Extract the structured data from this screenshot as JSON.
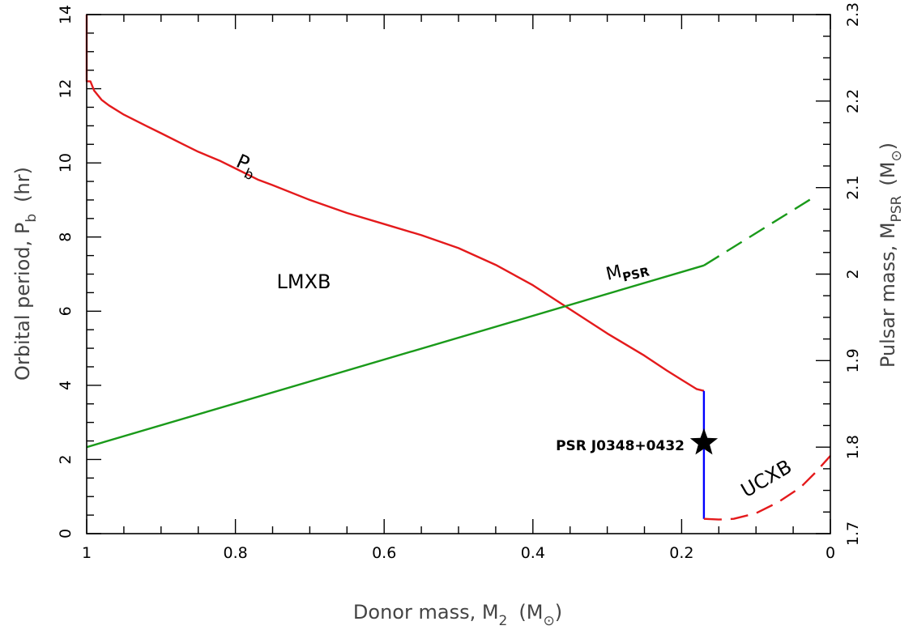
{
  "chart_data": {
    "type": "line",
    "xlabel": "Donor mass, M",
    "xlabel_sub": "2",
    "xlabel_unit": "(M",
    "xlabel_unit_close": ")",
    "ylabel_left": "Orbital period, P",
    "ylabel_left_sub": "b",
    "ylabel_left_unit": "(hr)",
    "ylabel_right": "Pulsar mass, M",
    "ylabel_right_sub": "PSR",
    "ylabel_right_unit": "(M",
    "ylabel_right_unit_close": ")",
    "xlim": [
      1,
      0
    ],
    "ylim_left": [
      0,
      14
    ],
    "ylim_right": [
      1.7,
      2.3
    ],
    "x_ticks": [
      "1",
      "0.8",
      "0.6",
      "0.4",
      "0.2",
      "0"
    ],
    "x_tick_values": [
      1,
      0.8,
      0.6,
      0.4,
      0.2,
      0
    ],
    "y_left_ticks": [
      "0",
      "2",
      "4",
      "6",
      "8",
      "10",
      "12",
      "14"
    ],
    "y_left_tick_values": [
      0,
      2,
      4,
      6,
      8,
      10,
      12,
      14
    ],
    "y_right_ticks": [
      "1.7",
      "1.8",
      "1.9",
      "2",
      "2.1",
      "2.2",
      "2.3"
    ],
    "y_right_tick_values": [
      1.7,
      1.8,
      1.9,
      2.0,
      2.1,
      2.2,
      2.3
    ],
    "grid": false,
    "series": [
      {
        "name": "P",
        "name_sub": "b",
        "axis": "left",
        "color": "#e41a1c",
        "style": "solid",
        "points": [
          [
            1.0,
            14.0
          ],
          [
            1.0,
            12.2
          ],
          [
            0.995,
            12.2
          ],
          [
            0.99,
            11.95
          ],
          [
            0.98,
            11.7
          ],
          [
            0.97,
            11.55
          ],
          [
            0.95,
            11.3
          ],
          [
            0.92,
            11.0
          ],
          [
            0.9,
            10.8
          ],
          [
            0.87,
            10.5
          ],
          [
            0.85,
            10.3
          ],
          [
            0.82,
            10.05
          ],
          [
            0.8,
            9.85
          ],
          [
            0.77,
            9.55
          ],
          [
            0.75,
            9.4
          ],
          [
            0.7,
            9.0
          ],
          [
            0.65,
            8.65
          ],
          [
            0.6,
            8.35
          ],
          [
            0.55,
            8.05
          ],
          [
            0.5,
            7.7
          ],
          [
            0.45,
            7.25
          ],
          [
            0.4,
            6.7
          ],
          [
            0.35,
            6.05
          ],
          [
            0.3,
            5.4
          ],
          [
            0.25,
            4.8
          ],
          [
            0.22,
            4.4
          ],
          [
            0.2,
            4.15
          ],
          [
            0.18,
            3.9
          ],
          [
            0.17,
            3.85
          ]
        ]
      },
      {
        "name": "",
        "axis": "left",
        "color": "#0000ff",
        "style": "solid",
        "points": [
          [
            0.17,
            3.85
          ],
          [
            0.17,
            0.4
          ]
        ]
      },
      {
        "name": "",
        "axis": "left",
        "color": "#e41a1c",
        "style": "dashed",
        "points": [
          [
            0.17,
            0.4
          ],
          [
            0.15,
            0.38
          ],
          [
            0.13,
            0.4
          ],
          [
            0.1,
            0.55
          ],
          [
            0.07,
            0.85
          ],
          [
            0.04,
            1.25
          ],
          [
            0.02,
            1.65
          ],
          [
            0.0,
            2.1
          ]
        ]
      },
      {
        "name": "M",
        "name_sub": "PSR",
        "axis": "right",
        "color": "#1a9a1a",
        "style": "solid",
        "points": [
          [
            1.0,
            1.8
          ],
          [
            0.17,
            2.01
          ]
        ]
      },
      {
        "name": "",
        "axis": "right",
        "color": "#1a9a1a",
        "style": "dashed",
        "points": [
          [
            0.17,
            2.01
          ],
          [
            0.02,
            2.09
          ]
        ]
      }
    ],
    "annotations": [
      {
        "text": "LMXB",
        "x": 0.71,
        "y": 6.95,
        "axis": "left"
      },
      {
        "text": "UCXB",
        "x": 0.095,
        "y": 1.4,
        "axis": "left",
        "rotate": -30
      },
      {
        "text": "PSR J0348+0432",
        "x": 0.3,
        "y": 2.45,
        "axis": "left"
      }
    ],
    "marker": {
      "label": "PSR J0348+0432",
      "x": 0.17,
      "y": 2.45,
      "axis": "left",
      "symbol": "star"
    }
  }
}
